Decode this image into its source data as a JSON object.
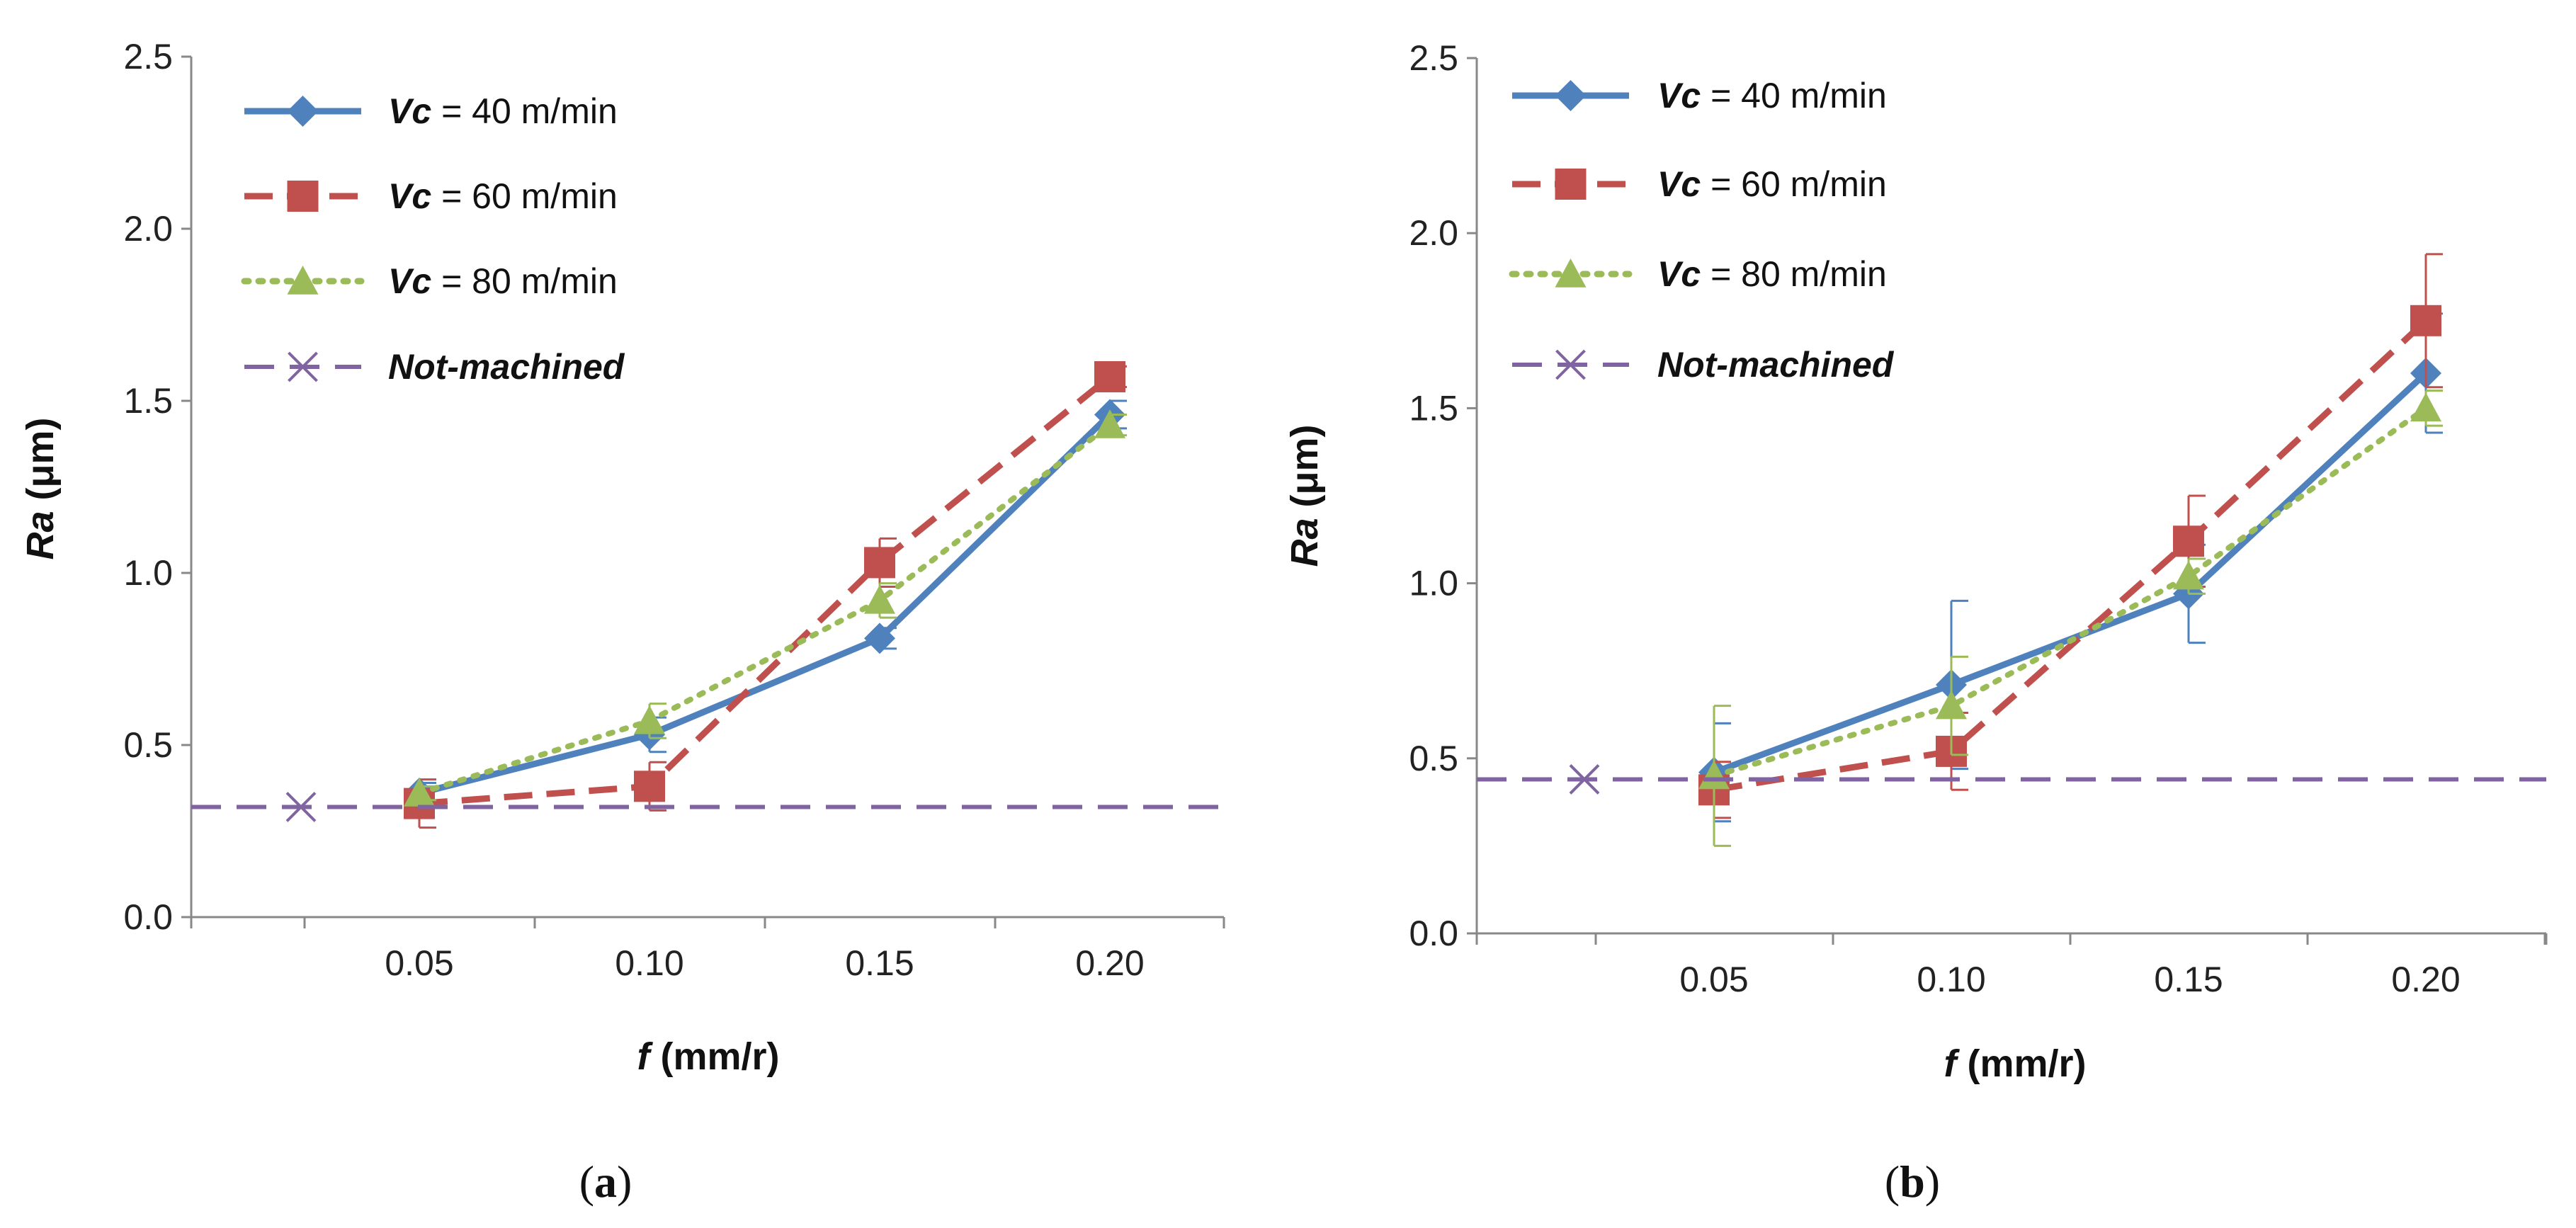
{
  "chart_data": [
    {
      "type": "line",
      "panel_label": "(a)",
      "x_ticks": [
        "0.05",
        "0.10",
        "0.15",
        "0.20"
      ],
      "x": [
        0.05,
        0.1,
        0.15,
        0.2
      ],
      "y_ticks": [
        "0.0",
        "0.5",
        "1.0",
        "1.5",
        "2.0",
        "2.5"
      ],
      "ylim": [
        0,
        2.5
      ],
      "xlabel_italic": "f",
      "xlabel_rest": " (mm/r)",
      "ylabel_italic": "Ra",
      "ylabel_rest": " (μm)",
      "legend_position": "top-left",
      "series": [
        {
          "name_italic": "Vc",
          "name_rest": " = 40 m/min",
          "color": "#4F81BD",
          "style": "solid",
          "marker": "diamond",
          "values": [
            0.36,
            0.53,
            0.81,
            1.46
          ],
          "errors": [
            0.03,
            0.05,
            0.03,
            0.04
          ]
        },
        {
          "name_italic": "Vc",
          "name_rest": " = 60 m/min",
          "color": "#C0504D",
          "style": "dashed",
          "marker": "square",
          "values": [
            0.33,
            0.38,
            1.03,
            1.57
          ],
          "errors": [
            0.07,
            0.07,
            0.07,
            0.03
          ]
        },
        {
          "name_italic": "Vc",
          "name_rest": " = 80 m/min",
          "color": "#9BBB59",
          "style": "dotted",
          "marker": "triangle",
          "values": [
            0.36,
            0.57,
            0.92,
            1.43
          ],
          "errors": [
            0.02,
            0.05,
            0.05,
            0.03
          ]
        },
        {
          "name_italic": "Not-machined",
          "name_rest": "",
          "color": "#8064A2",
          "style": "longdash",
          "marker": "x",
          "constant": 0.32,
          "marker_x": 0.025
        }
      ]
    },
    {
      "type": "line",
      "panel_label": "(b)",
      "x_ticks": [
        "0.05",
        "0.10",
        "0.15",
        "0.20"
      ],
      "x": [
        0.05,
        0.1,
        0.15,
        0.2
      ],
      "y_ticks": [
        "0.0",
        "0.5",
        "1.0",
        "1.5",
        "2.0",
        "2.5"
      ],
      "ylim": [
        0,
        2.5
      ],
      "xlabel_italic": "f",
      "xlabel_rest": " (mm/r)",
      "ylabel_italic": "Ra",
      "ylabel_rest": " (μm)",
      "legend_position": "top-left",
      "series": [
        {
          "name_italic": "Vc",
          "name_rest": " = 40 m/min",
          "color": "#4F81BD",
          "style": "solid",
          "marker": "diamond",
          "values": [
            0.46,
            0.71,
            0.97,
            1.6
          ],
          "errors": [
            0.14,
            0.24,
            0.14,
            0.17
          ]
        },
        {
          "name_italic": "Vc",
          "name_rest": " = 60 m/min",
          "color": "#C0504D",
          "style": "dashed",
          "marker": "square",
          "values": [
            0.41,
            0.52,
            1.12,
            1.75
          ],
          "errors": [
            0.08,
            0.11,
            0.13,
            0.19
          ]
        },
        {
          "name_italic": "Vc",
          "name_rest": " = 80 m/min",
          "color": "#9BBB59",
          "style": "dotted",
          "marker": "triangle",
          "values": [
            0.45,
            0.65,
            1.02,
            1.5
          ],
          "errors": [
            0.2,
            0.14,
            0.05,
            0.05
          ]
        },
        {
          "name_italic": "Not-machined",
          "name_rest": "",
          "color": "#8064A2",
          "style": "longdash",
          "marker": "x",
          "constant": 0.44,
          "marker_x": 0.025
        }
      ]
    }
  ]
}
